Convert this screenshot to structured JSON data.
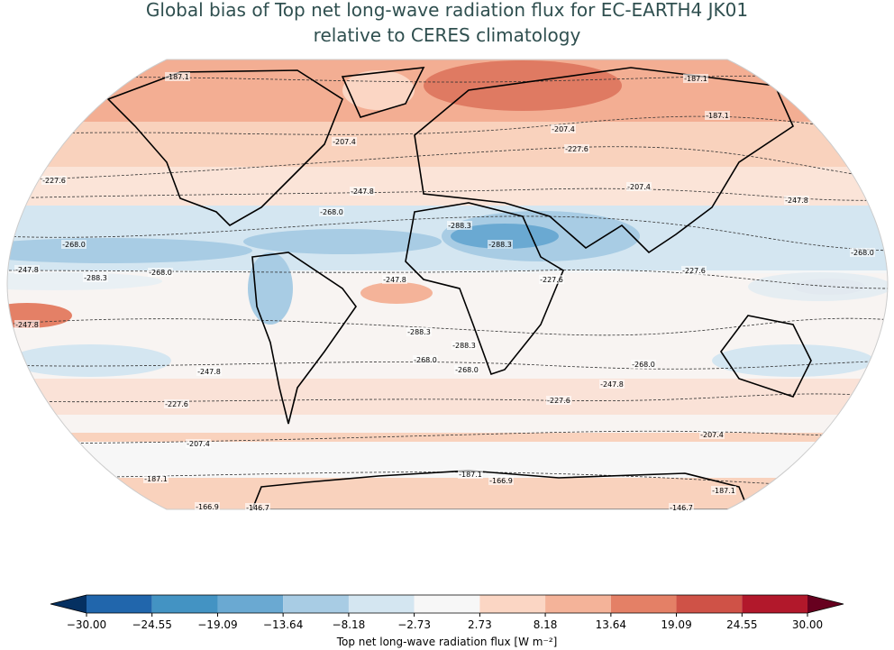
{
  "title_lines": [
    "Global bias of Top net long-wave radiation flux for EC-EARTH4 JK01",
    "relative to CERES climatology"
  ],
  "contour_labels": [
    "-187.1",
    "-207.4",
    "-227.6",
    "-247.8",
    "-268.0",
    "-288.3",
    "-166.9",
    "-146.7"
  ],
  "colorbar": {
    "label": "Top net long-wave radiation flux [W m⁻²]",
    "ticks": [
      {
        "value": -30,
        "label": "−30.00"
      },
      {
        "value": -24.55,
        "label": "−24.55"
      },
      {
        "value": -19.09,
        "label": "−19.09"
      },
      {
        "value": -13.64,
        "label": "−13.64"
      },
      {
        "value": -8.18,
        "label": "−8.18"
      },
      {
        "value": -2.73,
        "label": "−2.73"
      },
      {
        "value": 2.73,
        "label": "2.73"
      },
      {
        "value": 8.18,
        "label": "8.18"
      },
      {
        "value": 13.64,
        "label": "13.64"
      },
      {
        "value": 19.09,
        "label": "19.09"
      },
      {
        "value": 24.55,
        "label": "24.55"
      },
      {
        "value": 30,
        "label": "30.00"
      }
    ],
    "colors": [
      "#2166ac",
      "#4393c3",
      "#6aa9d2",
      "#a8cce4",
      "#d4e6f1",
      "#f7f7f7",
      "#fbd6c4",
      "#f4b399",
      "#e48066",
      "#cf5247",
      "#b2182b"
    ],
    "under_color": "#053061",
    "over_color": "#67001f"
  }
}
